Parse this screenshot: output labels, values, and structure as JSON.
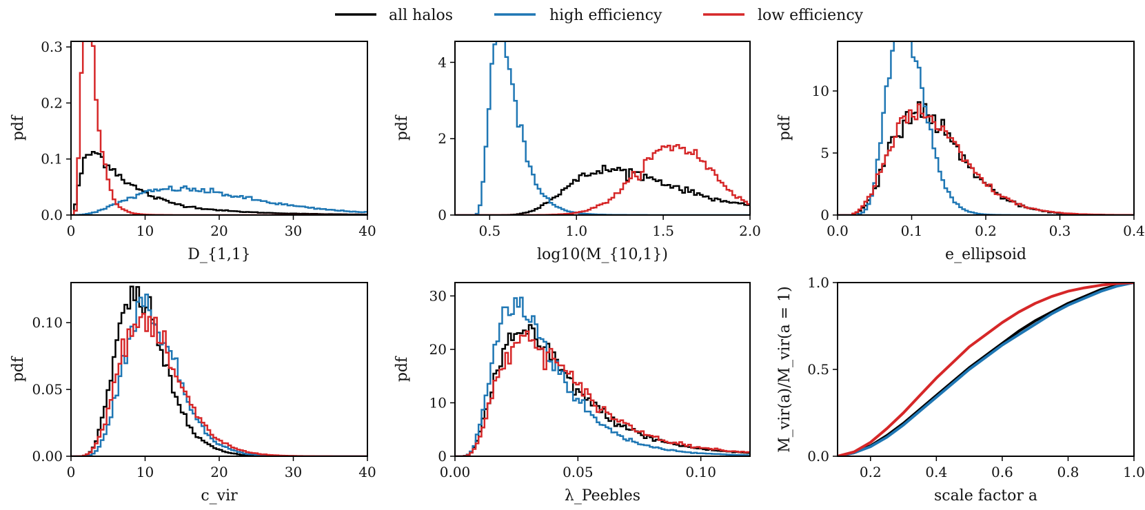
{
  "legend": [
    {
      "key": "all",
      "label": "all halos",
      "color": "#000000"
    },
    {
      "key": "high",
      "label": "high efficiency",
      "color": "#1f77b4"
    },
    {
      "key": "low",
      "label": "low efficiency",
      "color": "#d62728"
    }
  ],
  "chart_data": [
    {
      "id": "p1",
      "type": "histogram-step",
      "xlabel": "D_{1,1}",
      "ylabel": "pdf",
      "xlim": [
        0,
        40
      ],
      "ylim": [
        0,
        0.31
      ],
      "xticks": [
        0,
        10,
        20,
        30,
        40
      ],
      "xtick_labels": [
        "0",
        "10",
        "20",
        "30",
        "40"
      ],
      "yticks": [
        0,
        0.1,
        0.2,
        0.3
      ],
      "ytick_labels": [
        "0.0",
        "0.1",
        "0.2",
        "0.3"
      ],
      "bins": 100,
      "series": {
        "all": {
          "kind": "lognormal",
          "mu": 1.8,
          "sigma": 0.85,
          "amp": 1,
          "norm": true,
          "xmin": 0.5
        },
        "high": {
          "kind": "gamma",
          "k": 4,
          "theta": 4.8,
          "amp": 1,
          "norm": true,
          "xmin": 0.5
        },
        "low": {
          "kind": "lognormal",
          "mu": 0.95,
          "sigma": 0.45,
          "amp": 1,
          "norm": true,
          "xmin": 0.5
        }
      }
    },
    {
      "id": "p2",
      "type": "histogram-step",
      "xlabel": "log10(M_{10,1})",
      "ylabel": "pdf",
      "xlim": [
        0.3,
        2.0
      ],
      "ylim": [
        0,
        4.55
      ],
      "xticks": [
        0.5,
        1.0,
        1.5,
        2.0
      ],
      "xtick_labels": [
        "0.5",
        "1.0",
        "1.5",
        "2.0"
      ],
      "yticks": [
        0,
        2,
        4
      ],
      "ytick_labels": [
        "0",
        "2",
        "4"
      ],
      "bins": 100,
      "series": {
        "all": {
          "kind": "lognormal",
          "mu": -0.05,
          "sigma": 0.38,
          "shift": 0.38,
          "amp": 1,
          "norm": true,
          "xmin": 0.38
        },
        "high": {
          "kind": "lognormal",
          "mu": -1.55,
          "sigma": 0.42,
          "shift": 0.38,
          "amp": 1,
          "norm": true,
          "xmin": 0.38
        },
        "low": {
          "kind": "gauss",
          "m": 1.57,
          "s": 0.22,
          "amp": 1,
          "norm": true,
          "xmin": 0.7
        }
      }
    },
    {
      "id": "p3",
      "type": "histogram-step",
      "xlabel": "e_ellipsoid",
      "ylabel": "pdf",
      "xlim": [
        0,
        0.4
      ],
      "ylim": [
        0,
        14
      ],
      "xticks": [
        0,
        0.1,
        0.2,
        0.3,
        0.4
      ],
      "xtick_labels": [
        "0.0",
        "0.1",
        "0.2",
        "0.3",
        "0.4"
      ],
      "yticks": [
        0,
        5,
        10
      ],
      "ytick_labels": [
        "0",
        "5",
        "10"
      ],
      "bins": 100,
      "series": {
        "all": {
          "kind": "gamma",
          "k": 6.5,
          "theta": 0.02,
          "amp": 1,
          "norm": true,
          "xmin": 0.02
        },
        "high": {
          "kind": "gamma",
          "k": 14,
          "theta": 0.0068,
          "amp": 1,
          "norm": true,
          "xmin": 0.02
        },
        "low": {
          "kind": "gamma",
          "k": 6.2,
          "theta": 0.021,
          "amp": 1,
          "norm": true,
          "xmin": 0.02
        }
      }
    },
    {
      "id": "p4",
      "type": "histogram-step",
      "xlabel": "c_vir",
      "ylabel": "pdf",
      "xlim": [
        0,
        40
      ],
      "ylim": [
        0,
        0.13
      ],
      "xticks": [
        0,
        10,
        20,
        30,
        40
      ],
      "xtick_labels": [
        "0",
        "10",
        "20",
        "30",
        "40"
      ],
      "yticks": [
        0,
        0.05,
        0.1
      ],
      "ytick_labels": [
        "0.00",
        "0.05",
        "0.10"
      ],
      "bins": 100,
      "series": {
        "all": {
          "kind": "gamma",
          "k": 8,
          "theta": 1.25,
          "amp": 1,
          "norm": true,
          "xmin": 0.5
        },
        "high": {
          "kind": "gamma",
          "k": 9,
          "theta": 1.25,
          "amp": 1,
          "norm": true,
          "xmin": 0.5
        },
        "low": {
          "kind": "gamma",
          "k": 7,
          "theta": 1.6,
          "amp": 1,
          "norm": true,
          "xmin": 0.5
        }
      }
    },
    {
      "id": "p5",
      "type": "histogram-step",
      "xlabel": "λ_Peebles",
      "ylabel": "pdf",
      "xlim": [
        0,
        0.12
      ],
      "ylim": [
        0,
        32.5
      ],
      "xticks": [
        0,
        0.05,
        0.1
      ],
      "xtick_labels": [
        "0.00",
        "0.05",
        "0.10"
      ],
      "yticks": [
        0,
        10,
        20,
        30
      ],
      "ytick_labels": [
        "0",
        "10",
        "20",
        "30"
      ],
      "bins": 100,
      "series": {
        "all": {
          "kind": "lognormal",
          "mu": -3.3,
          "sigma": 0.55,
          "amp": 1,
          "norm": true,
          "xmin": 0.003
        },
        "high": {
          "kind": "lognormal",
          "mu": -3.45,
          "sigma": 0.5,
          "amp": 1,
          "norm": true,
          "xmin": 0.003
        },
        "low": {
          "kind": "lognormal",
          "mu": -3.25,
          "sigma": 0.55,
          "amp": 1,
          "norm": true,
          "xmin": 0.003
        }
      }
    },
    {
      "id": "p6",
      "type": "line",
      "xlabel": "scale factor a",
      "ylabel": "M_vir(a)/M_vir(a = 1)",
      "xlim": [
        0.1,
        1.0
      ],
      "ylim": [
        0,
        1.0
      ],
      "xticks": [
        0.2,
        0.4,
        0.6,
        0.8,
        1.0
      ],
      "xtick_labels": [
        "0.2",
        "0.4",
        "0.6",
        "0.8",
        "1.0"
      ],
      "yticks": [
        0,
        0.5,
        1.0
      ],
      "ytick_labels": [
        "0.0",
        "0.5",
        "1.0"
      ],
      "series": {
        "all": {
          "x": [
            0.1,
            0.15,
            0.2,
            0.25,
            0.3,
            0.35,
            0.4,
            0.45,
            0.5,
            0.55,
            0.6,
            0.65,
            0.7,
            0.75,
            0.8,
            0.85,
            0.9,
            0.95,
            1.0
          ],
          "y": [
            0.0,
            0.02,
            0.06,
            0.12,
            0.19,
            0.27,
            0.35,
            0.43,
            0.51,
            0.58,
            0.65,
            0.72,
            0.78,
            0.83,
            0.88,
            0.92,
            0.96,
            0.985,
            1.0
          ]
        },
        "high": {
          "x": [
            0.1,
            0.15,
            0.2,
            0.25,
            0.3,
            0.35,
            0.4,
            0.45,
            0.5,
            0.55,
            0.6,
            0.65,
            0.7,
            0.75,
            0.8,
            0.85,
            0.9,
            0.95,
            1.0
          ],
          "y": [
            0.0,
            0.02,
            0.055,
            0.11,
            0.18,
            0.26,
            0.34,
            0.42,
            0.5,
            0.57,
            0.64,
            0.7,
            0.76,
            0.82,
            0.87,
            0.91,
            0.95,
            0.98,
            1.0
          ]
        },
        "low": {
          "x": [
            0.1,
            0.15,
            0.2,
            0.25,
            0.3,
            0.35,
            0.4,
            0.45,
            0.5,
            0.55,
            0.6,
            0.65,
            0.7,
            0.75,
            0.8,
            0.85,
            0.9,
            0.95,
            1.0
          ],
          "y": [
            0.0,
            0.025,
            0.08,
            0.16,
            0.25,
            0.35,
            0.45,
            0.54,
            0.63,
            0.7,
            0.77,
            0.83,
            0.88,
            0.92,
            0.95,
            0.97,
            0.985,
            0.995,
            1.0
          ]
        }
      }
    }
  ]
}
